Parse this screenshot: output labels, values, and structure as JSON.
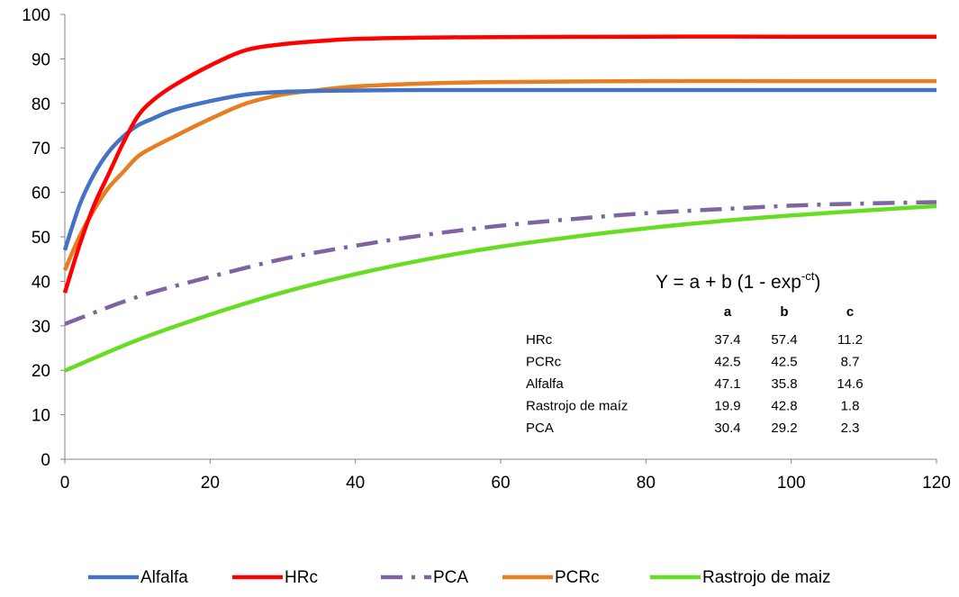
{
  "chart_data": {
    "type": "line",
    "title": "",
    "xlabel": "",
    "ylabel": "",
    "xlim": [
      0,
      120
    ],
    "ylim": [
      0,
      100
    ],
    "xticks": [
      0,
      20,
      40,
      60,
      80,
      100,
      120
    ],
    "yticks": [
      0,
      10,
      20,
      30,
      40,
      50,
      60,
      70,
      80,
      90,
      100
    ],
    "grid": false,
    "legend_position": "bottom",
    "series": [
      {
        "name": "Alfalfa",
        "color": "#4472C4",
        "dash": "solid",
        "x": [
          0,
          2,
          4,
          6,
          8,
          10,
          12,
          15,
          20,
          25,
          30,
          40,
          50,
          60,
          80,
          100,
          120
        ],
        "y": [
          47,
          57,
          64,
          69,
          72.5,
          75,
          76.5,
          78.5,
          80.5,
          82,
          82.6,
          82.9,
          83,
          83,
          83,
          83,
          83
        ]
      },
      {
        "name": "HRc",
        "color": "#FF0000",
        "dash": "solid",
        "x": [
          0,
          2,
          4,
          6,
          8,
          10,
          12,
          15,
          20,
          25,
          30,
          35,
          40,
          50,
          60,
          80,
          100,
          120
        ],
        "y": [
          37.4,
          48,
          57,
          64,
          71,
          77,
          80.5,
          84,
          88.5,
          92,
          93.3,
          94,
          94.5,
          94.8,
          94.9,
          95,
          95,
          95
        ]
      },
      {
        "name": "PCA",
        "color": "#8064A2",
        "dash": "dashdot",
        "x": [
          0,
          10,
          20,
          30,
          40,
          50,
          60,
          70,
          80,
          90,
          100,
          110,
          120
        ],
        "y": [
          30.4,
          36.5,
          41,
          45,
          48,
          50.5,
          52.5,
          54,
          55.3,
          56.2,
          57,
          57.5,
          57.8
        ]
      },
      {
        "name": "PCRc",
        "color": "#E67E22",
        "dash": "solid",
        "x": [
          0,
          2,
          4,
          6,
          8,
          10,
          12,
          15,
          20,
          25,
          30,
          35,
          40,
          50,
          60,
          80,
          100,
          120
        ],
        "y": [
          42.5,
          50,
          56,
          61,
          64.5,
          68,
          70,
          72.5,
          76.5,
          80,
          82,
          83,
          83.8,
          84.5,
          84.8,
          85,
          85,
          85
        ]
      },
      {
        "name": "Rastrojo de maiz",
        "color": "#66DD22",
        "dash": "solid",
        "x": [
          0,
          10,
          20,
          30,
          40,
          50,
          60,
          70,
          80,
          90,
          100,
          110,
          120
        ],
        "y": [
          19.9,
          26.8,
          32.5,
          37.5,
          41.6,
          45,
          47.8,
          50,
          51.9,
          53.5,
          54.8,
          55.9,
          56.9
        ]
      }
    ],
    "annotation": {
      "equation_main": "Y = a + b (1 - exp",
      "equation_sup": "-ct",
      "equation_end": ")",
      "table_headers": [
        "a",
        "b",
        "c"
      ],
      "table_rows": [
        {
          "label": "HRc",
          "a": "37.4",
          "b": "57.4",
          "c": "11.2"
        },
        {
          "label": "PCRc",
          "a": "42.5",
          "b": "42.5",
          "c": "8.7"
        },
        {
          "label": "Alfalfa",
          "a": "47.1",
          "b": "35.8",
          "c": "14.6"
        },
        {
          "label": "Rastrojo de maíz",
          "a": "19.9",
          "b": "42.8",
          "c": "1.8"
        },
        {
          "label": "PCA",
          "a": "30.4",
          "b": "29.2",
          "c": "2.3"
        }
      ]
    }
  }
}
